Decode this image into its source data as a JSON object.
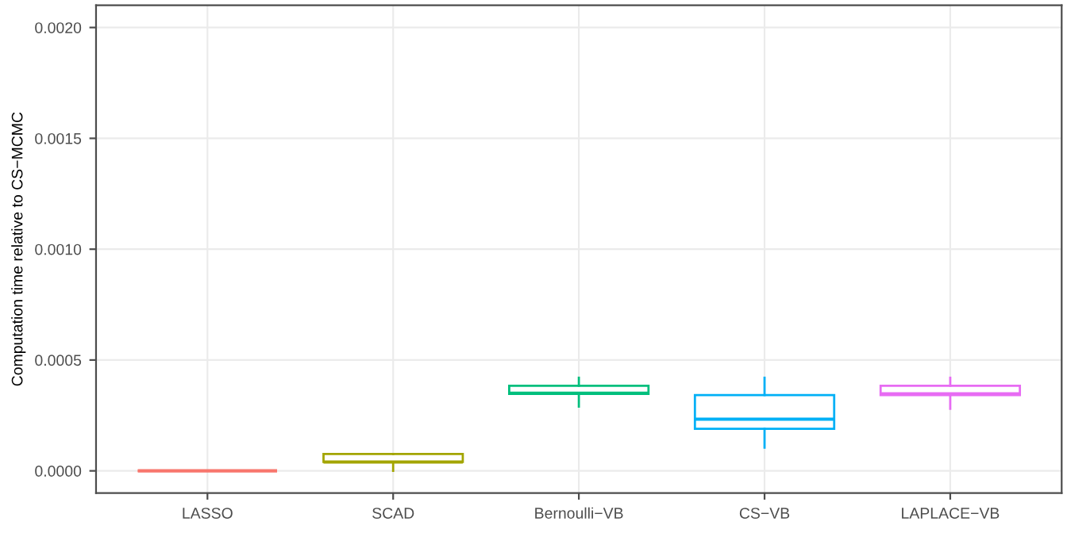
{
  "chart_data": {
    "type": "box",
    "ylabel": "Computation time relative to CS−MCMC",
    "categories": [
      "LASSO",
      "SCAD",
      "Bernoulli−VB",
      "CS−VB",
      "LAPLACE−VB"
    ],
    "colors": [
      "#f8766d",
      "#a3a500",
      "#00bf7d",
      "#00b0f6",
      "#e76bf3"
    ],
    "boxes": [
      {
        "low": 0,
        "q1": 0,
        "median": 0,
        "q3": 0,
        "high": 0
      },
      {
        "low": 0,
        "q1": 4e-05,
        "median": 4e-05,
        "q3": 7.6e-05,
        "high": 7.6e-05
      },
      {
        "low": 0.00029,
        "q1": 0.000347,
        "median": 0.00035,
        "q3": 0.000384,
        "high": 0.00042
      },
      {
        "low": 0.000105,
        "q1": 0.00019,
        "median": 0.000233,
        "q3": 0.000342,
        "high": 0.00042
      },
      {
        "low": 0.00028,
        "q1": 0.000342,
        "median": 0.000347,
        "q3": 0.000384,
        "high": 0.00042
      }
    ],
    "ylim": [
      -0.0001,
      0.0021
    ],
    "yticks": [
      {
        "value": 0,
        "label": "0.0000"
      },
      {
        "value": 0.0005,
        "label": "0.0005"
      },
      {
        "value": 0.001,
        "label": "0.0010"
      },
      {
        "value": 0.0015,
        "label": "0.0015"
      },
      {
        "value": 0.002,
        "label": "0.0020"
      }
    ],
    "grid": true
  }
}
